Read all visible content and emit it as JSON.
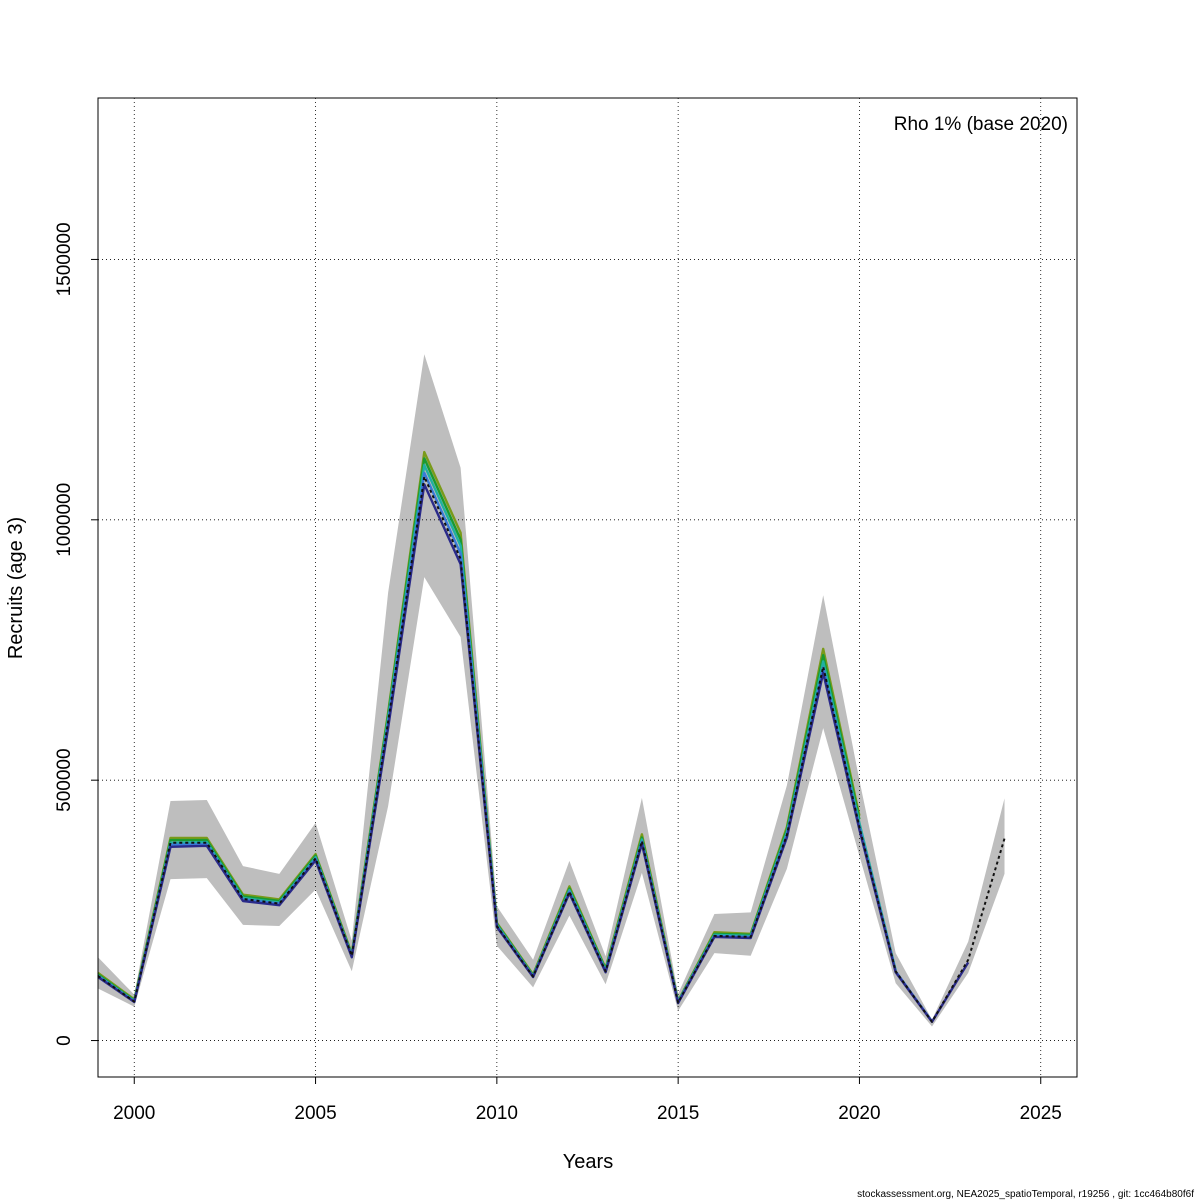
{
  "chart_data": {
    "type": "line",
    "title": "",
    "annotation": "Rho 1% (base 2020)",
    "xlabel": "Years",
    "ylabel": "Recruits (age 3)",
    "xlim": [
      1999,
      2026
    ],
    "ylim": [
      -70000,
      1810000
    ],
    "grid": true,
    "legend": "none",
    "x_ticks": [
      2000,
      2005,
      2010,
      2015,
      2020,
      2025
    ],
    "y_ticks": [
      0,
      500000,
      1000000,
      1500000
    ],
    "y_tick_labels": [
      "0",
      "500000",
      "1000000",
      "1500000"
    ],
    "x_tick_labels": [
      "2000",
      "2005",
      "2010",
      "2015",
      "2020",
      "2025"
    ],
    "confidence_band": {
      "color": "#bebebe",
      "x": [
        1999,
        2000,
        2001,
        2002,
        2003,
        2004,
        2005,
        2006,
        2007,
        2008,
        2009,
        2010,
        2011,
        2012,
        2013,
        2014,
        2015,
        2016,
        2017,
        2018,
        2019,
        2020,
        2021,
        2022,
        2023,
        2024
      ],
      "lower": [
        100000,
        65000,
        310000,
        312000,
        222000,
        220000,
        290000,
        133000,
        450000,
        890000,
        775000,
        182000,
        102000,
        240000,
        108000,
        322000,
        57000,
        168000,
        163000,
        330000,
        600000,
        355000,
        110000,
        27000,
        130000,
        320000
      ],
      "upper": [
        160000,
        88000,
        460000,
        462000,
        335000,
        320000,
        418000,
        192000,
        860000,
        1318000,
        1100000,
        258000,
        155000,
        345000,
        162000,
        466000,
        90000,
        243000,
        246000,
        490000,
        855000,
        500000,
        168000,
        40000,
        190000,
        465000
      ]
    },
    "series": [
      {
        "color": "#7a9a1a",
        "x": [
          1999,
          2000,
          2001,
          2002,
          2003,
          2004,
          2005,
          2006,
          2007,
          2008,
          2009,
          2010,
          2011,
          2012,
          2013,
          2014,
          2015,
          2016,
          2017,
          2018,
          2019,
          2020
        ],
        "values": [
          130000,
          79000,
          389000,
          389000,
          280000,
          271000,
          358000,
          167000,
          630000,
          1130000,
          975000,
          226000,
          127000,
          296000,
          139000,
          396000,
          76000,
          208000,
          205000,
          410000,
          752000,
          432000
        ]
      },
      {
        "color": "#1a9a30",
        "x": [
          1999,
          2000,
          2001,
          2002,
          2003,
          2004,
          2005,
          2006,
          2007,
          2008,
          2009,
          2010,
          2011,
          2012,
          2013,
          2014,
          2015,
          2016,
          2017,
          2018,
          2019,
          2020
        ],
        "values": [
          127000,
          77000,
          385000,
          385000,
          277000,
          268000,
          355000,
          165000,
          625000,
          1118000,
          962000,
          224000,
          125000,
          292000,
          137000,
          390000,
          75000,
          205000,
          203000,
          405000,
          740000,
          425000
        ]
      },
      {
        "color": "#20b0a0",
        "x": [
          1999,
          2000,
          2001,
          2002,
          2003,
          2004,
          2005,
          2006,
          2007,
          2008,
          2009,
          2010,
          2011,
          2012,
          2013,
          2014,
          2015,
          2016,
          2017,
          2018,
          2019,
          2020,
          2021
        ],
        "values": [
          125000,
          76000,
          380000,
          381000,
          274000,
          265000,
          352000,
          163000,
          618000,
          1105000,
          950000,
          222000,
          124000,
          289000,
          135000,
          386000,
          74000,
          203000,
          201000,
          400000,
          728000,
          418000,
          135000
        ]
      },
      {
        "color": "#3a7ad8",
        "x": [
          1999,
          2000,
          2001,
          2002,
          2003,
          2004,
          2005,
          2006,
          2007,
          2008,
          2009,
          2010,
          2011,
          2012,
          2013,
          2014,
          2015,
          2016,
          2017,
          2018,
          2019,
          2020,
          2021,
          2022
        ],
        "values": [
          124000,
          75000,
          376000,
          377000,
          271000,
          263000,
          349000,
          162000,
          610000,
          1090000,
          935000,
          220000,
          123000,
          286000,
          133000,
          382000,
          73000,
          201000,
          199000,
          395000,
          716000,
          410000,
          133000,
          37000
        ]
      },
      {
        "color": "#2a2a8a",
        "x": [
          1999,
          2000,
          2001,
          2002,
          2003,
          2004,
          2005,
          2006,
          2007,
          2008,
          2009,
          2010,
          2011,
          2012,
          2013,
          2014,
          2015,
          2016,
          2017,
          2018,
          2019,
          2020,
          2021,
          2022,
          2023
        ],
        "values": [
          122000,
          74000,
          372000,
          374000,
          268000,
          260000,
          346000,
          160000,
          600000,
          1068000,
          915000,
          218000,
          122000,
          283000,
          131000,
          378000,
          72000,
          199000,
          197000,
          390000,
          706000,
          405000,
          131000,
          36000,
          150000
        ]
      },
      {
        "color": "#111111",
        "dashed": true,
        "x": [
          1999,
          2000,
          2001,
          2002,
          2003,
          2004,
          2005,
          2006,
          2007,
          2008,
          2009,
          2010,
          2011,
          2012,
          2013,
          2014,
          2015,
          2016,
          2017,
          2018,
          2019,
          2020,
          2021,
          2022,
          2023,
          2024
        ],
        "values": [
          124000,
          75000,
          380000,
          380000,
          272000,
          263000,
          350000,
          163000,
          612000,
          1083000,
          925000,
          220000,
          123000,
          286000,
          133000,
          383000,
          73000,
          201000,
          199000,
          395000,
          718000,
          410000,
          133000,
          36000,
          155000,
          388000
        ]
      }
    ]
  },
  "footer": "stockassessment.org, NEA2025_spatioTemporal, r19256 , git: 1cc464b80f6f"
}
